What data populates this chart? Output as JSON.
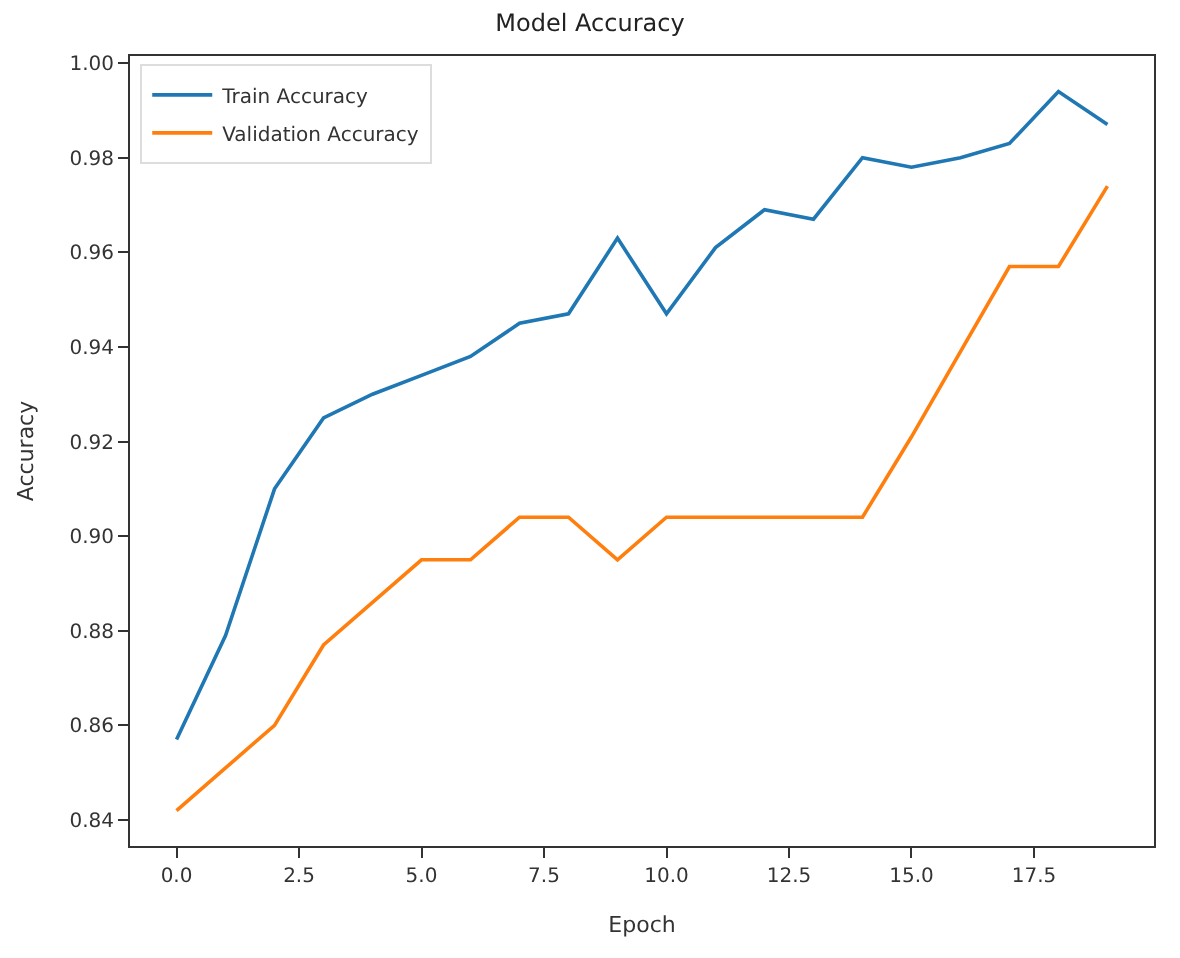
{
  "chart_data": {
    "type": "line",
    "title": "Model Accuracy",
    "xlabel": "Epoch",
    "ylabel": "Accuracy",
    "x": [
      0,
      1,
      2,
      3,
      4,
      5,
      6,
      7,
      8,
      9,
      10,
      11,
      12,
      13,
      14,
      15,
      16,
      17,
      18,
      19
    ],
    "series": [
      {
        "name": "Train Accuracy",
        "color": "#1f77b4",
        "values": [
          0.857,
          0.879,
          0.91,
          0.925,
          0.93,
          0.934,
          0.938,
          0.945,
          0.947,
          0.963,
          0.947,
          0.961,
          0.969,
          0.967,
          0.98,
          0.978,
          0.98,
          0.983,
          0.994,
          0.987
        ]
      },
      {
        "name": "Validation Accuracy",
        "color": "#ff7f0e",
        "values": [
          0.842,
          0.851,
          0.86,
          0.877,
          0.886,
          0.895,
          0.895,
          0.904,
          0.904,
          0.895,
          0.904,
          0.904,
          0.904,
          0.904,
          0.904,
          0.921,
          0.939,
          0.957,
          0.957,
          0.974
        ]
      }
    ],
    "xlim": [
      -0.95,
      19.95
    ],
    "xticks": [
      {
        "value": 0,
        "label": "0.0"
      },
      {
        "value": 2.5,
        "label": "2.5"
      },
      {
        "value": 5,
        "label": "5.0"
      },
      {
        "value": 7.5,
        "label": "7.5"
      },
      {
        "value": 10,
        "label": "10.0"
      },
      {
        "value": 12.5,
        "label": "12.5"
      },
      {
        "value": 15,
        "label": "15.0"
      },
      {
        "value": 17.5,
        "label": "17.5"
      }
    ],
    "ylim": [
      0.8345,
      1.0015
    ],
    "yticks": [
      {
        "value": 0.84,
        "label": "0.84"
      },
      {
        "value": 0.86,
        "label": "0.86"
      },
      {
        "value": 0.88,
        "label": "0.88"
      },
      {
        "value": 0.9,
        "label": "0.90"
      },
      {
        "value": 0.92,
        "label": "0.92"
      },
      {
        "value": 0.94,
        "label": "0.94"
      },
      {
        "value": 0.96,
        "label": "0.96"
      },
      {
        "value": 0.98,
        "label": "0.98"
      },
      {
        "value": 1.0,
        "label": "1.00"
      }
    ],
    "legend": "top left",
    "marker": "none",
    "line_style": "solid"
  }
}
